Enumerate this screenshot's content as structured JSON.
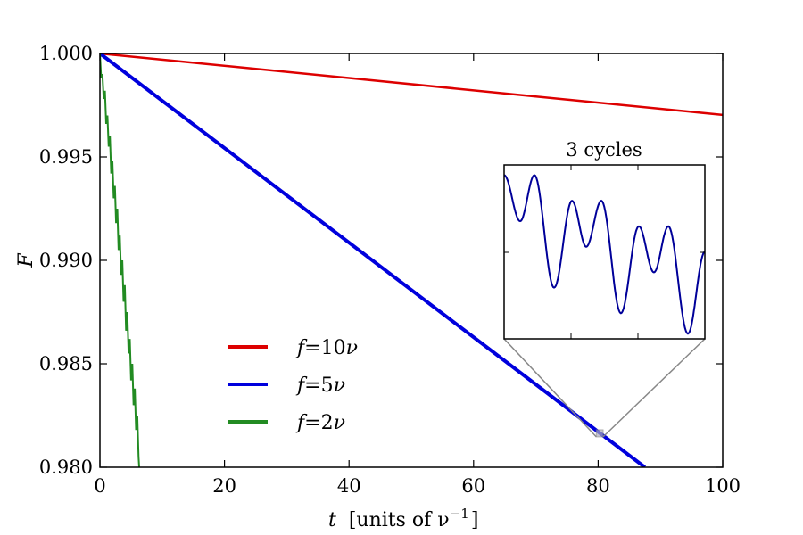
{
  "chart_data": {
    "type": "line",
    "xlabel_var": "t",
    "xlabel_units": "[units of ν",
    "xlabel_sup": "−1",
    "xlabel_close": "]",
    "ylabel": "F",
    "xlim": [
      0,
      100
    ],
    "ylim": [
      0.98,
      1.0
    ],
    "xticks": [
      "0",
      "20",
      "40",
      "60",
      "80",
      "100"
    ],
    "xtick_values": [
      0,
      20,
      40,
      60,
      80,
      100
    ],
    "yticks": [
      "0.980",
      "0.985",
      "0.990",
      "0.995",
      "1.000"
    ],
    "ytick_values": [
      0.98,
      0.985,
      0.99,
      0.995,
      1.0
    ],
    "grid": false,
    "legend_placement": "lower-left",
    "series": [
      {
        "name_f": "f",
        "name_eq": "=10",
        "name_nu": "ν",
        "color": "#dd0000",
        "x": [
          0,
          100
        ],
        "y": [
          1.0,
          0.99703
        ]
      },
      {
        "name_f": "f",
        "name_eq": "=5",
        "name_nu": "ν",
        "color": "#0000dd",
        "x": [
          0,
          87.5
        ],
        "y": [
          1.0,
          0.98
        ]
      },
      {
        "name_f": "f",
        "name_eq": "=2",
        "name_nu": "ν",
        "color": "#228B22",
        "x": [
          0,
          0.2,
          0.4,
          0.6,
          0.8,
          1.0,
          1.2,
          1.4,
          1.6,
          1.8,
          2.0,
          2.2,
          2.4,
          2.6,
          2.8,
          3.0,
          3.2,
          3.4,
          3.6,
          3.8,
          4.0,
          4.2,
          4.4,
          4.6,
          4.8,
          5.0,
          5.2,
          5.4,
          5.6,
          5.8,
          6.0,
          6.2,
          6.3
        ],
        "y": [
          1.0,
          0.9988,
          0.999,
          0.9978,
          0.9982,
          0.9966,
          0.997,
          0.9955,
          0.996,
          0.9942,
          0.9948,
          0.993,
          0.9936,
          0.9918,
          0.9925,
          0.9905,
          0.9912,
          0.9893,
          0.99,
          0.988,
          0.9888,
          0.9866,
          0.9875,
          0.9855,
          0.9862,
          0.9842,
          0.985,
          0.983,
          0.9838,
          0.9818,
          0.9825,
          0.9805,
          0.98
        ]
      }
    ],
    "inset": {
      "title": "3 cycles",
      "color": "#000099",
      "xlim": [
        79.7,
        80.8
      ],
      "ylim": [
        0.98147,
        0.98181
      ],
      "x": [
        79.7,
        79.788,
        79.866,
        79.974,
        80.072,
        80.15,
        80.233,
        80.34,
        80.438,
        80.521,
        80.6,
        80.707,
        80.8
      ],
      "y": [
        0.98179,
        0.9817,
        0.98179,
        0.98157,
        0.98174,
        0.98165,
        0.98174,
        0.98152,
        0.98169,
        0.9816,
        0.98169,
        0.98148,
        0.98164
      ]
    }
  }
}
